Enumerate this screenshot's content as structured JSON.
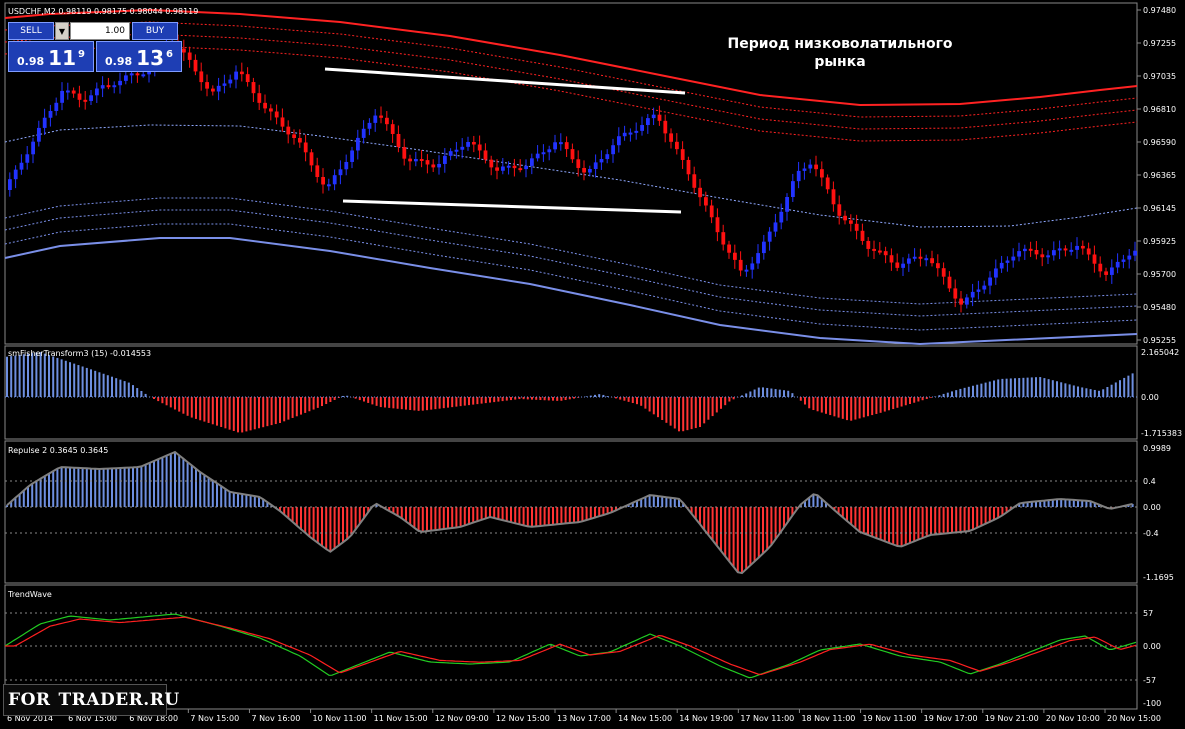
{
  "symbol_header": "USDCHF,M2  0.98119 0.98175 0.98044 0.98119",
  "trade_panel": {
    "sell_label": "SELL",
    "buy_label": "BUY",
    "lot_value": "1.00",
    "dropdown_icon": "chevron-down-icon",
    "sell_price": {
      "prefix": "0.98",
      "big": "11",
      "sup": "9"
    },
    "buy_price": {
      "prefix": "0.98",
      "big": "13",
      "sup": "6"
    }
  },
  "annotation": {
    "line1": "Период низковолатильного",
    "line2": "рынка"
  },
  "price_axis": [
    "0.97480",
    "0.97255",
    "0.97035",
    "0.96810",
    "0.96590",
    "0.96365",
    "0.96145",
    "0.95925",
    "0.95700",
    "0.95480",
    "0.95255"
  ],
  "time_axis": [
    "6 Nov 2014",
    "6 Nov 15:00",
    "6 Nov 18:00",
    "7 Nov 15:00",
    "7 Nov 16:00",
    "10 Nov 11:00",
    "11 Nov 15:00",
    "12 Nov 09:00",
    "12 Nov 15:00",
    "13 Nov 17:00",
    "14 Nov 15:00",
    "14 Nov 19:00",
    "17 Nov 11:00",
    "18 Nov 11:00",
    "19 Nov 11:00",
    "19 Nov 17:00",
    "19 Nov 21:00",
    "20 Nov 10:00",
    "20 Nov 15:00"
  ],
  "fisher_panel": {
    "title": "smFisherTransform3 (15) -0.014553",
    "axis": [
      "2.165042",
      "0.00",
      "-1.715383"
    ]
  },
  "repulse_panel": {
    "title": "Repulse 2 0.3645 0.3645",
    "axis": [
      "0.9989",
      "0.4",
      "0.00",
      "-0.4",
      "-1.1695"
    ]
  },
  "trendwave_panel": {
    "title": "TrendWave",
    "axis": [
      "57",
      "0.00",
      "-57",
      "-100"
    ]
  },
  "logo": {
    "part1": "FOR",
    "part2": "TRADER.RU"
  },
  "colors": {
    "bull": "#2233ff",
    "bear": "#ff1111",
    "upper_band": "#ff2222",
    "lower_band": "#7a8fe8",
    "hist_pos": "#6e8fe0",
    "hist_neg": "#ff3333",
    "wave_green": "#22cc22",
    "wave_red": "#ff2020"
  }
}
